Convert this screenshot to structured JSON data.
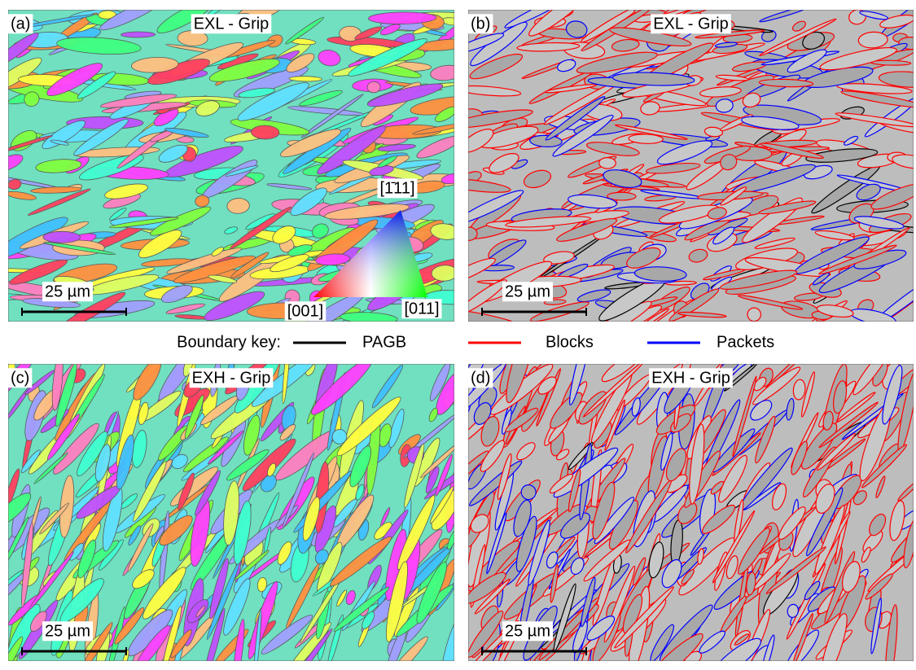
{
  "panels": [
    {
      "label": "(a)",
      "title": "EXL - Grip",
      "scale_bar": "25 µm",
      "kind": "ipf",
      "ipf_key": {
        "top": "[1̄11]",
        "left": "[001]",
        "right": "[011]"
      }
    },
    {
      "label": "(b)",
      "title": "EXL - Grip",
      "scale_bar": "25 µm",
      "kind": "boundary"
    },
    {
      "label": "(c)",
      "title": "EXH - Grip",
      "scale_bar": "25 µm",
      "kind": "ipf"
    },
    {
      "label": "(d)",
      "title": "EXH - Grip",
      "scale_bar": "25 µm",
      "kind": "boundary"
    }
  ],
  "boundary_key": {
    "title": "Boundary key:",
    "items": [
      {
        "label": "PAGB",
        "color": "#000000"
      },
      {
        "label": "Blocks",
        "color": "#ff0000"
      },
      {
        "label": "Packets",
        "color": "#0000ff"
      }
    ]
  }
}
